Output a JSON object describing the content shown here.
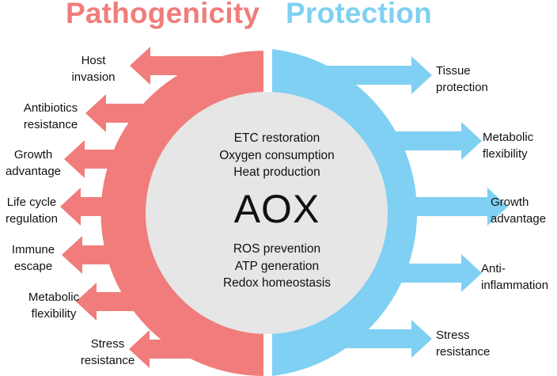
{
  "titles": {
    "left": "Pathogenicity",
    "right": "Protection"
  },
  "colors": {
    "pathogenicity": "#f07d7b",
    "protection": "#7fd0f2",
    "center": "#e6e6e6"
  },
  "center": {
    "title": "AOX",
    "top_lines": [
      "ETC restoration",
      "Oxygen consumption",
      "Heat production"
    ],
    "bottom_lines": [
      "ROS prevention",
      "ATP generation",
      "Redox homeostasis"
    ]
  },
  "pathogenicity_items": [
    "Host\ninvasion",
    "Antibiotics\nresistance",
    "Growth\nadvantage",
    "Life cycle\nregulation",
    "Immune\nescape",
    "Metabolic\nflexibility",
    "Stress\nresistance"
  ],
  "protection_items": [
    "Tissue\nprotection",
    "Metabolic\nflexibility",
    "Growth\nadvantage",
    "Anti-\ninflammation",
    "Stress\nresistance"
  ]
}
